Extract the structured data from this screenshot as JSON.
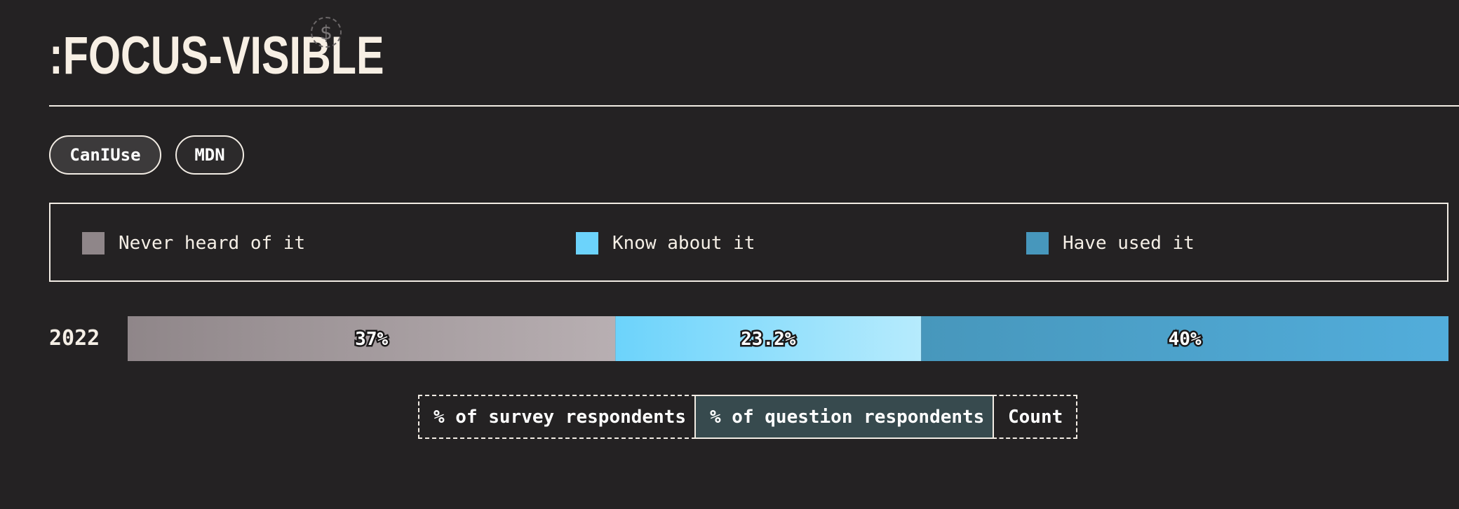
{
  "header": {
    "title": ":FOCUS-VISIBLE",
    "dollar_symbol": "$"
  },
  "links": [
    {
      "label": "CanIUse"
    },
    {
      "label": "MDN"
    }
  ],
  "legend": [
    {
      "label": "Never heard of it",
      "color": "#8f8689"
    },
    {
      "label": "Know about it",
      "color": "#6cd3fb"
    },
    {
      "label": "Have used it",
      "color": "#4797bc"
    }
  ],
  "chart_data": {
    "type": "bar",
    "orientation": "horizontal-stacked",
    "categories": [
      "2022"
    ],
    "series": [
      {
        "name": "Never heard of it",
        "values": [
          37
        ],
        "label": "37%"
      },
      {
        "name": "Know about it",
        "values": [
          23.2
        ],
        "label": "23.2%"
      },
      {
        "name": "Have used it",
        "values": [
          40
        ],
        "label": "40%"
      }
    ],
    "unit": "%"
  },
  "toggles": [
    {
      "label": "% of survey respondents",
      "active": false
    },
    {
      "label": "% of question respondents",
      "active": true
    },
    {
      "label": "Count",
      "active": false
    }
  ]
}
